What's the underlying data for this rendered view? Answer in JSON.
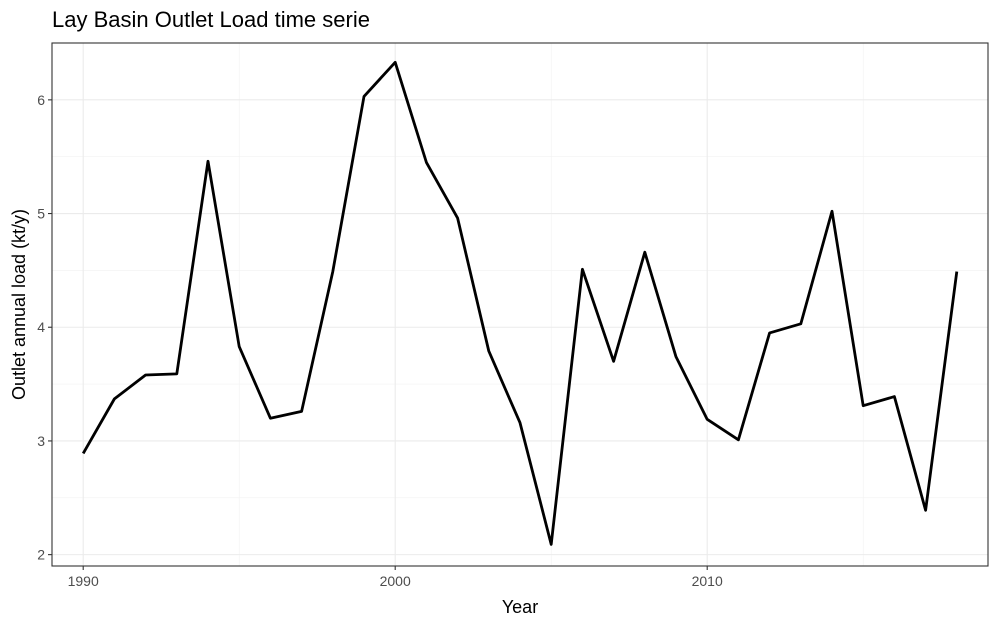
{
  "chart_data": {
    "type": "line",
    "title": "Lay Basin Outlet Load time serie",
    "xlabel": "Year",
    "ylabel": "Outlet annual load (kt/y)",
    "xlim": [
      1989,
      2019
    ],
    "ylim": [
      1.9,
      6.5
    ],
    "x_ticks": [
      1990,
      2000,
      2010
    ],
    "y_ticks": [
      2,
      3,
      4,
      5,
      6
    ],
    "grid": true,
    "theme": "bw",
    "line_color": "#000000",
    "series": [
      {
        "x": [
          1990,
          1991,
          1992,
          1993,
          1994,
          1995,
          1996,
          1997,
          1998,
          1999,
          2000,
          2001,
          2002,
          2003,
          2004,
          2005,
          2006,
          2007,
          2008,
          2009,
          2010,
          2011,
          2012,
          2013,
          2014,
          2015,
          2016,
          2017,
          2018
        ],
        "values": [
          2.89,
          3.37,
          3.58,
          3.59,
          5.46,
          3.83,
          3.2,
          3.26,
          4.49,
          6.03,
          6.33,
          5.45,
          4.96,
          3.79,
          3.16,
          2.09,
          4.51,
          3.7,
          4.66,
          3.74,
          3.19,
          3.01,
          3.95,
          4.03,
          5.02,
          3.31,
          3.39,
          2.39,
          4.49
        ]
      }
    ]
  }
}
